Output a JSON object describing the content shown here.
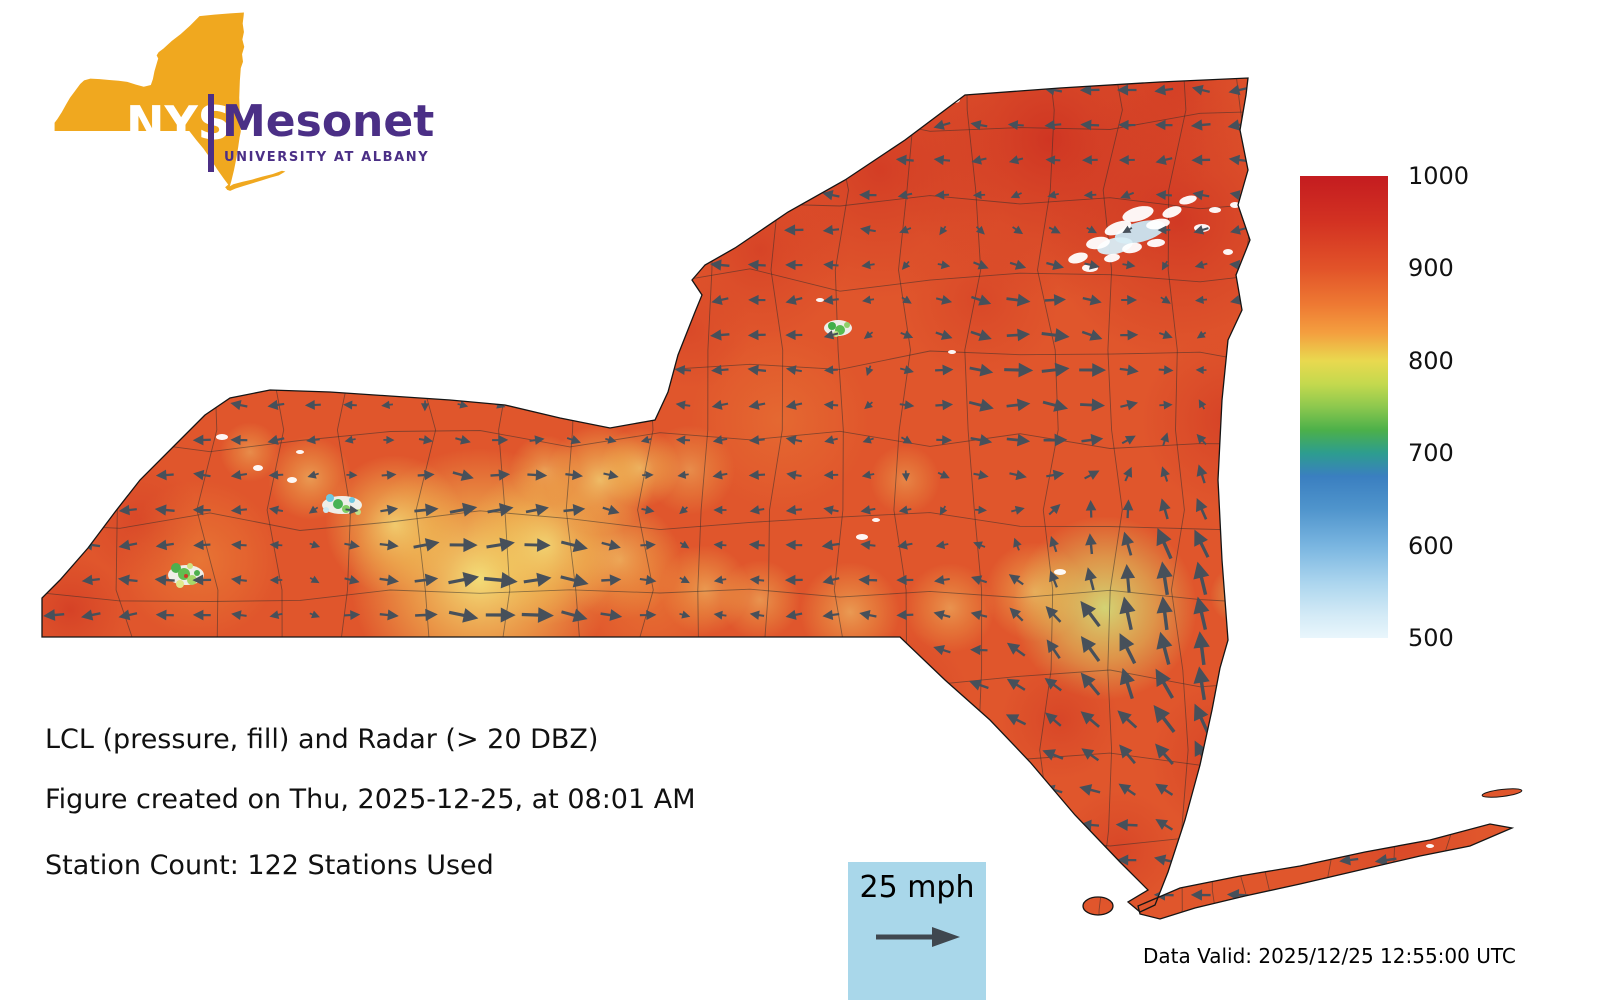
{
  "logo": {
    "nys": "NYS",
    "mesonet": "Mesonet",
    "university": "UNIVERSITY AT ALBANY"
  },
  "annotations": {
    "title": "LCL (pressure, fill) and Radar (> 20 DBZ)",
    "created": "Figure created on Thu, 2025-12-25, at 08:01 AM",
    "station_count": "Station Count: 122 Stations Used",
    "data_valid": "Data Valid: 2025/12/25 12:55:00 UTC"
  },
  "wind_legend": {
    "label": "25 mph"
  },
  "colorbar": {
    "ticks": [
      "1000",
      "900",
      "800",
      "700",
      "600",
      "500"
    ],
    "stops": [
      [
        0,
        "#c41c20"
      ],
      [
        10,
        "#d33222"
      ],
      [
        20,
        "#e25329"
      ],
      [
        28,
        "#ee7a33"
      ],
      [
        34,
        "#f49f3f"
      ],
      [
        40,
        "#e9d94f"
      ],
      [
        45,
        "#c4d94e"
      ],
      [
        50,
        "#8cc84e"
      ],
      [
        55,
        "#4cb04a"
      ],
      [
        60,
        "#2d9d8f"
      ],
      [
        65,
        "#3a7fc0"
      ],
      [
        72,
        "#4f94cc"
      ],
      [
        80,
        "#79b5e0"
      ],
      [
        88,
        "#abd5ee"
      ],
      [
        95,
        "#d3eaf6"
      ],
      [
        100,
        "#e9f6fc"
      ]
    ]
  },
  "colors": {
    "base_fill": "#e0562c",
    "arrow": "#47505a",
    "brand_yellow": "#F0A81F",
    "brand_purple": "#4B2F86",
    "legend_bg": "#A9D7EA",
    "outline": "#151515"
  },
  "chart_data": {
    "type": "heatmap",
    "title": "LCL (pressure, fill) and Radar (> 20 DBZ)",
    "region": "New York State",
    "fill_field": "LCL pressure",
    "colorbar_range": [
      500,
      1000
    ],
    "colorbar_ticks": [
      1000,
      900,
      800,
      700,
      600,
      500
    ],
    "wind_vector_legend_mph": 25,
    "stations_used": 122,
    "data_valid_utc": "2025/12/25 12:55:00 UTC",
    "legend_position": "right"
  }
}
